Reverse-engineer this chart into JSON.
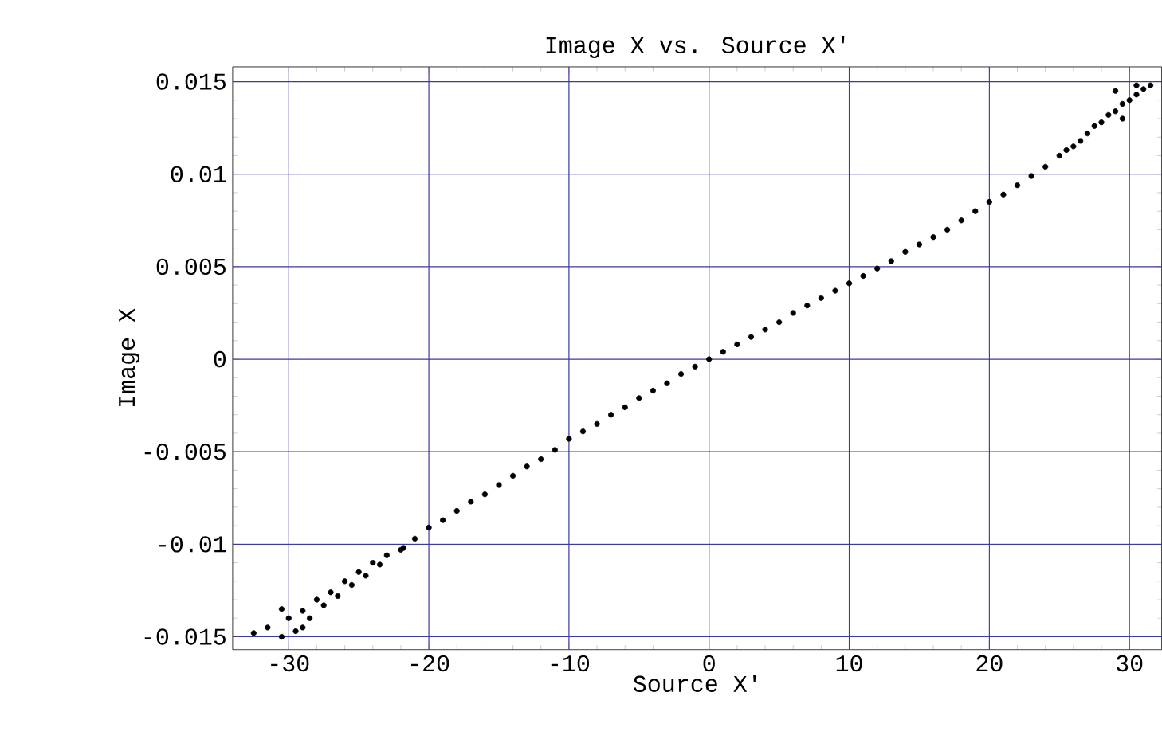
{
  "chart_data": {
    "type": "scatter",
    "title": "Image X vs. Source X'",
    "xlabel": "Source X'",
    "ylabel": "Image X",
    "xlim": [
      -34,
      32.3
    ],
    "ylim": [
      -0.0157,
      0.0158
    ],
    "xticks": [
      -30,
      -20,
      -10,
      0,
      10,
      20,
      30
    ],
    "yticks": [
      -0.015,
      -0.01,
      -0.005,
      0,
      0.005,
      0.01,
      0.015
    ],
    "grid": true,
    "marker": "circle",
    "series": [
      {
        "color": "#000000",
        "x": [
          -32.5,
          -31.5,
          -30.5,
          -30.5,
          -30,
          -29.5,
          -29,
          -29,
          -28.5,
          -28,
          -27.5,
          -27,
          -26.5,
          -26,
          -25.5,
          -25,
          -24.5,
          -24,
          -23.5,
          -23,
          -22,
          -21.8,
          -21,
          -20,
          -19,
          -18,
          -17,
          -16,
          -15,
          -14,
          -13,
          -12,
          -11,
          -10,
          -9,
          -8,
          -7,
          -6,
          -5,
          -4,
          -3,
          -2,
          -1,
          0,
          1,
          2,
          3,
          4,
          5,
          6,
          7,
          8,
          9,
          10,
          11,
          12,
          13,
          14,
          15,
          16,
          17,
          18,
          19,
          20,
          21,
          22,
          23,
          24,
          25,
          25.5,
          26,
          26.5,
          27,
          27.5,
          28,
          28.5,
          29,
          29,
          29.5,
          29.5,
          30,
          30.5,
          30.5,
          31,
          31.5
        ],
        "values": [
          -0.0148,
          -0.0145,
          -0.015,
          -0.0135,
          -0.014,
          -0.0147,
          -0.0136,
          -0.0145,
          -0.014,
          -0.013,
          -0.0133,
          -0.0126,
          -0.0128,
          -0.012,
          -0.0122,
          -0.0115,
          -0.0117,
          -0.011,
          -0.0111,
          -0.0106,
          -0.0103,
          -0.0102,
          -0.0097,
          -0.0091,
          -0.0087,
          -0.0082,
          -0.0077,
          -0.0073,
          -0.0068,
          -0.0063,
          -0.0058,
          -0.0054,
          -0.0049,
          -0.0043,
          -0.0039,
          -0.0035,
          -0.003,
          -0.0026,
          -0.0021,
          -0.0017,
          -0.0013,
          -0.0008,
          -0.0004,
          0,
          0.0004,
          0.0008,
          0.0012,
          0.0016,
          0.002,
          0.0025,
          0.0029,
          0.0033,
          0.0037,
          0.0041,
          0.0045,
          0.0049,
          0.0053,
          0.0058,
          0.0062,
          0.0066,
          0.007,
          0.0075,
          0.008,
          0.0085,
          0.0089,
          0.0094,
          0.0099,
          0.0104,
          0.011,
          0.0113,
          0.0115,
          0.0118,
          0.0122,
          0.0126,
          0.0128,
          0.0132,
          0.0134,
          0.0145,
          0.0138,
          0.013,
          0.014,
          0.0143,
          0.0148,
          0.0146,
          0.0148
        ]
      }
    ]
  }
}
